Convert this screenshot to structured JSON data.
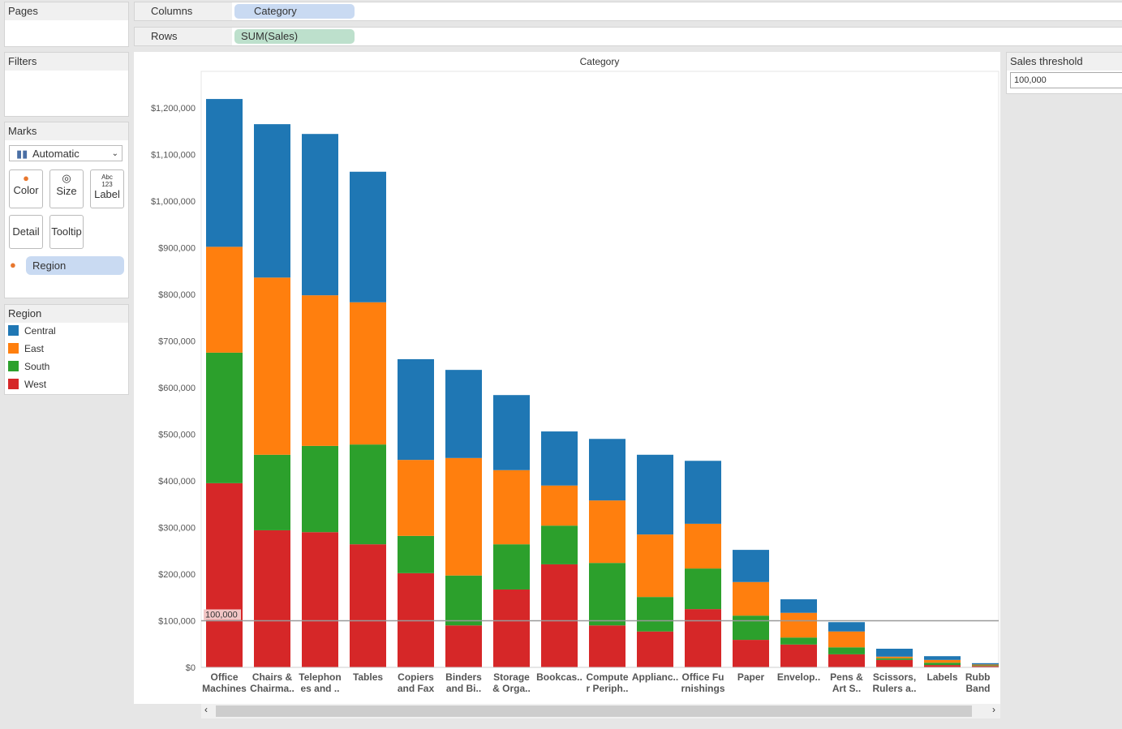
{
  "shelves": {
    "pages": "Pages",
    "columns": "Columns",
    "columns_pill": "Category",
    "rows": "Rows",
    "rows_pill": "SUM(Sales)"
  },
  "filters": {
    "title": "Filters"
  },
  "marks": {
    "title": "Marks",
    "type": "Automatic",
    "buttons": {
      "color": "Color",
      "size": "Size",
      "label": "Label",
      "detail": "Detail",
      "tooltip": "Tooltip"
    },
    "color_pill": "Region"
  },
  "legend": {
    "title": "Region",
    "items": [
      {
        "label": "Central",
        "color": "#1f77b4"
      },
      {
        "label": "East",
        "color": "#ff7f0e"
      },
      {
        "label": "South",
        "color": "#2ca02c"
      },
      {
        "label": "West",
        "color": "#d62728"
      }
    ]
  },
  "parameter": {
    "title": "Sales threshold",
    "value": "100,000"
  },
  "chart_data": {
    "type": "bar",
    "stacked": true,
    "title": "Category",
    "categories": [
      "Office Machines",
      "Chairs & Chairma..",
      "Telephon es and ..",
      "Tables",
      "Copiers and Fax",
      "Binders and Bi..",
      "Storage & Orga..",
      "Bookcas..",
      "Compute r Periph..",
      "Applianc..",
      "Office Fu rnishings",
      "Paper",
      "Envelop..",
      "Pens & Art S..",
      "Scissors, Rulers a..",
      "Labels",
      "Rubb Band"
    ],
    "category_lines": [
      [
        "Office",
        "Machines"
      ],
      [
        "Chairs &",
        "Chairma.."
      ],
      [
        "Telephon",
        "es and .."
      ],
      [
        "Tables",
        ""
      ],
      [
        "Copiers",
        "and Fax"
      ],
      [
        "Binders",
        "and Bi.."
      ],
      [
        "Storage",
        "& Orga.."
      ],
      [
        "Bookcas..",
        ""
      ],
      [
        "Compute",
        "r Periph.."
      ],
      [
        "Applianc..",
        ""
      ],
      [
        "Office Fu",
        "rnishings"
      ],
      [
        "Paper",
        ""
      ],
      [
        "Envelop..",
        ""
      ],
      [
        "Pens &",
        "Art S.."
      ],
      [
        "Scissors,",
        "Rulers a.."
      ],
      [
        "Labels",
        ""
      ],
      [
        "Rubb",
        "Band"
      ]
    ],
    "series": [
      {
        "name": "West",
        "color": "#d62728",
        "values": [
          395000,
          294000,
          290000,
          264000,
          202000,
          90000,
          167000,
          221000,
          90000,
          77000,
          125000,
          59000,
          49000,
          28000,
          16000,
          5000,
          3000
        ]
      },
      {
        "name": "South",
        "color": "#2ca02c",
        "values": [
          280000,
          162000,
          185000,
          214000,
          80000,
          107000,
          97000,
          83000,
          134000,
          74000,
          87000,
          52000,
          15000,
          15000,
          3500,
          5000,
          1500
        ]
      },
      {
        "name": "East",
        "color": "#ff7f0e",
        "values": [
          227000,
          380000,
          323000,
          305000,
          163000,
          252000,
          159000,
          86000,
          134000,
          134000,
          96000,
          72000,
          53000,
          34000,
          3500,
          6000,
          1700
        ]
      },
      {
        "name": "Central",
        "color": "#1f77b4",
        "values": [
          317000,
          329000,
          346000,
          280000,
          216000,
          189000,
          161000,
          116000,
          132000,
          171000,
          135000,
          69000,
          29000,
          20000,
          17000,
          8000,
          2800
        ]
      }
    ],
    "ylim": [
      0,
      1280000
    ],
    "yticks": [
      "$0",
      "$100,000",
      "$200,000",
      "$300,000",
      "$400,000",
      "$500,000",
      "$600,000",
      "$700,000",
      "$800,000",
      "$900,000",
      "$1,000,000",
      "$1,100,000",
      "$1,200,000"
    ],
    "reference_line": {
      "value": 100000,
      "label": "100,000"
    },
    "legend": "left"
  }
}
